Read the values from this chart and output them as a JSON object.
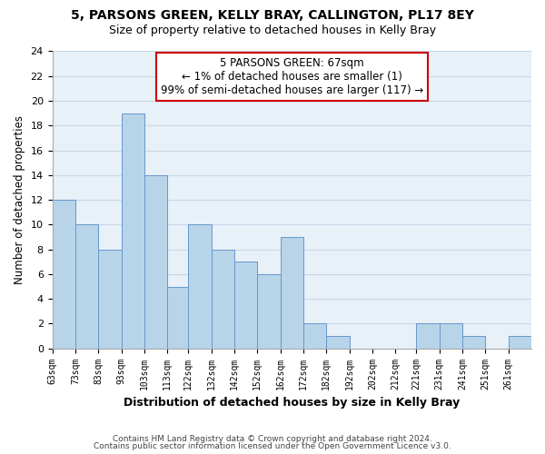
{
  "title": "5, PARSONS GREEN, KELLY BRAY, CALLINGTON, PL17 8EY",
  "subtitle": "Size of property relative to detached houses in Kelly Bray",
  "xlabel": "Distribution of detached houses by size in Kelly Bray",
  "ylabel": "Number of detached properties",
  "bar_color": "#b8d4e8",
  "bar_edge_color": "#6699cc",
  "background_color": "#ffffff",
  "plot_bg_color": "#e8f0f8",
  "grid_color": "#c8d8e8",
  "annotation_box_edge": "#cc0000",
  "bin_labels": [
    "63sqm",
    "73sqm",
    "83sqm",
    "93sqm",
    "103sqm",
    "113sqm",
    "122sqm",
    "132sqm",
    "142sqm",
    "152sqm",
    "162sqm",
    "172sqm",
    "182sqm",
    "192sqm",
    "202sqm",
    "212sqm",
    "221sqm",
    "231sqm",
    "241sqm",
    "251sqm",
    "261sqm"
  ],
  "counts": [
    12,
    10,
    8,
    19,
    14,
    5,
    10,
    8,
    7,
    6,
    9,
    2,
    1,
    0,
    0,
    0,
    2,
    2,
    1,
    0,
    1
  ],
  "bin_edges": [
    63,
    73,
    83,
    93,
    103,
    113,
    122,
    132,
    142,
    152,
    162,
    172,
    182,
    192,
    202,
    212,
    221,
    231,
    241,
    251,
    261,
    271
  ],
  "ylim": [
    0,
    24
  ],
  "yticks": [
    0,
    2,
    4,
    6,
    8,
    10,
    12,
    14,
    16,
    18,
    20,
    22,
    24
  ],
  "annotation_line1": "5 PARSONS GREEN: 67sqm",
  "annotation_line2": "← 1% of detached houses are smaller (1)",
  "annotation_line3": "99% of semi-detached houses are larger (117) →",
  "footnote1": "Contains HM Land Registry data © Crown copyright and database right 2024.",
  "footnote2": "Contains public sector information licensed under the Open Government Licence v3.0."
}
